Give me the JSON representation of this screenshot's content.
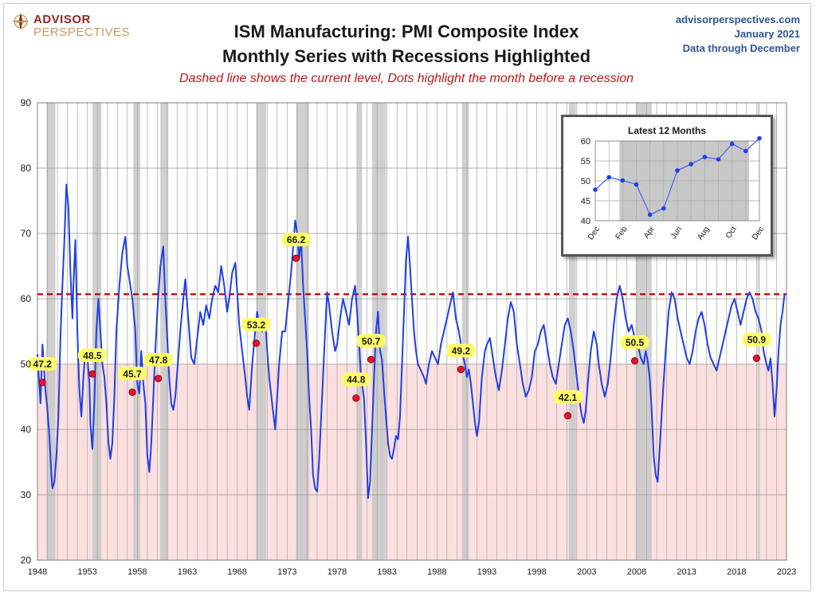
{
  "header": {
    "logo_line1": "ADVISOR",
    "logo_line2": "PERSPECTIVES",
    "title_line1": "ISM Manufacturing: PMI Composite Index",
    "title_line2": "Monthly Series with Recessions Highlighted",
    "subtitle": "Dashed line shows the current level, Dots highlight the month before a recession",
    "source_site": "advisorperspectives.com",
    "source_date": "January 2021",
    "source_note": "Data through December"
  },
  "colors": {
    "series": "#1f3fe8",
    "dashed_line": "#c00000",
    "recession_band": "#c8c8c8",
    "below_50_band": "#fbe0df",
    "dot": "#e8112d",
    "label_bg": "#ffff66",
    "logo_red": "#8c2a1e",
    "logo_gold": "#c89b5a",
    "source_blue": "#2f5597"
  },
  "chart_data": [
    {
      "type": "line",
      "xlim": [
        1948,
        2023
      ],
      "ylim": [
        20,
        90
      ],
      "x_ticks": [
        1948,
        1953,
        1958,
        1963,
        1968,
        1973,
        1978,
        1983,
        1988,
        1993,
        1998,
        2003,
        2008,
        2013,
        2018,
        2023
      ],
      "y_ticks": [
        20,
        30,
        40,
        50,
        60,
        70,
        80,
        90
      ],
      "grid": true,
      "vertical_grid_step_years": 1,
      "current_level": 60.7,
      "shaded_below": 50,
      "recessions": [
        [
          1948.9,
          1949.8
        ],
        [
          1953.5,
          1954.4
        ],
        [
          1957.6,
          1958.3
        ],
        [
          1960.3,
          1961.1
        ],
        [
          1969.9,
          1970.9
        ],
        [
          1973.9,
          1975.2
        ],
        [
          1980.0,
          1980.5
        ],
        [
          1981.5,
          1982.9
        ],
        [
          1990.5,
          1991.2
        ],
        [
          2001.2,
          2001.9
        ],
        [
          2007.9,
          2009.5
        ],
        [
          2020.1,
          2020.3
        ]
      ],
      "series_points": [
        [
          1948.0,
          51.5
        ],
        [
          1948.3,
          44
        ],
        [
          1948.5,
          53
        ],
        [
          1948.8,
          46
        ],
        [
          1949.0,
          43
        ],
        [
          1949.2,
          39
        ],
        [
          1949.4,
          33
        ],
        [
          1949.5,
          31
        ],
        [
          1949.7,
          32
        ],
        [
          1949.9,
          36
        ],
        [
          1950.1,
          42
        ],
        [
          1950.3,
          54
        ],
        [
          1950.5,
          62
        ],
        [
          1950.7,
          69
        ],
        [
          1950.9,
          77.5
        ],
        [
          1951.1,
          74
        ],
        [
          1951.3,
          64
        ],
        [
          1951.5,
          57
        ],
        [
          1951.6,
          62
        ],
        [
          1951.8,
          69
        ],
        [
          1952.0,
          55
        ],
        [
          1952.2,
          46
        ],
        [
          1952.4,
          42
        ],
        [
          1952.6,
          48
        ],
        [
          1952.8,
          52
        ],
        [
          1953.0,
          51
        ],
        [
          1953.2,
          47
        ],
        [
          1953.3,
          41
        ],
        [
          1953.5,
          37
        ],
        [
          1953.7,
          44
        ],
        [
          1953.9,
          55
        ],
        [
          1954.1,
          60
        ],
        [
          1954.3,
          55
        ],
        [
          1954.5,
          50
        ],
        [
          1954.7,
          48
        ],
        [
          1954.9,
          44
        ],
        [
          1955.1,
          38
        ],
        [
          1955.3,
          35.5
        ],
        [
          1955.5,
          38
        ],
        [
          1955.7,
          45
        ],
        [
          1955.9,
          55
        ],
        [
          1956.2,
          62
        ],
        [
          1956.5,
          67
        ],
        [
          1956.8,
          69.5
        ],
        [
          1957.0,
          65
        ],
        [
          1957.2,
          63
        ],
        [
          1957.5,
          60
        ],
        [
          1957.8,
          55
        ],
        [
          1958.0,
          47
        ],
        [
          1958.2,
          45.5
        ],
        [
          1958.4,
          52
        ],
        [
          1958.6,
          47
        ],
        [
          1958.8,
          44
        ],
        [
          1959.0,
          36
        ],
        [
          1959.2,
          33.5
        ],
        [
          1959.4,
          38
        ],
        [
          1959.6,
          45
        ],
        [
          1959.8,
          52
        ],
        [
          1960.0,
          58
        ],
        [
          1960.3,
          65
        ],
        [
          1960.6,
          68
        ],
        [
          1960.8,
          60
        ],
        [
          1961.0,
          54
        ],
        [
          1961.2,
          47.8
        ],
        [
          1961.4,
          44
        ],
        [
          1961.6,
          43
        ],
        [
          1961.8,
          45
        ],
        [
          1962.0,
          49
        ],
        [
          1962.3,
          55
        ],
        [
          1962.6,
          60
        ],
        [
          1962.8,
          63
        ],
        [
          1963.0,
          59
        ],
        [
          1963.2,
          55
        ],
        [
          1963.4,
          51
        ],
        [
          1963.7,
          50
        ],
        [
          1964.0,
          54
        ],
        [
          1964.3,
          58
        ],
        [
          1964.6,
          56
        ],
        [
          1964.9,
          59
        ],
        [
          1965.2,
          57
        ],
        [
          1965.5,
          60
        ],
        [
          1965.8,
          62
        ],
        [
          1966.1,
          61
        ],
        [
          1966.4,
          65
        ],
        [
          1966.7,
          62
        ],
        [
          1967.0,
          58
        ],
        [
          1967.2,
          60
        ],
        [
          1967.5,
          64
        ],
        [
          1967.8,
          65.5
        ],
        [
          1968.0,
          61
        ],
        [
          1968.2,
          56
        ],
        [
          1968.5,
          52
        ],
        [
          1968.8,
          48
        ],
        [
          1969.0,
          45
        ],
        [
          1969.2,
          43
        ],
        [
          1969.5,
          50
        ],
        [
          1969.8,
          55
        ],
        [
          1970.0,
          58
        ],
        [
          1970.2,
          56
        ],
        [
          1970.5,
          55
        ],
        [
          1970.8,
          57
        ],
        [
          1971.0,
          52
        ],
        [
          1971.2,
          48
        ],
        [
          1971.5,
          44
        ],
        [
          1971.8,
          40
        ],
        [
          1972.0,
          45
        ],
        [
          1972.2,
          50
        ],
        [
          1972.5,
          55
        ],
        [
          1972.8,
          55
        ],
        [
          1973.0,
          58
        ],
        [
          1973.2,
          61
        ],
        [
          1973.4,
          64
        ],
        [
          1973.6,
          68
        ],
        [
          1973.8,
          72
        ],
        [
          1974.0,
          70
        ],
        [
          1974.2,
          66.2
        ],
        [
          1974.4,
          69
        ],
        [
          1974.6,
          62
        ],
        [
          1974.8,
          57
        ],
        [
          1975.0,
          52
        ],
        [
          1975.2,
          45
        ],
        [
          1975.4,
          40
        ],
        [
          1975.6,
          33
        ],
        [
          1975.8,
          31
        ],
        [
          1976.0,
          30.5
        ],
        [
          1976.2,
          35
        ],
        [
          1976.5,
          45
        ],
        [
          1976.8,
          55
        ],
        [
          1977.0,
          61
        ],
        [
          1977.2,
          59
        ],
        [
          1977.5,
          55
        ],
        [
          1977.8,
          52
        ],
        [
          1978.0,
          53
        ],
        [
          1978.3,
          57
        ],
        [
          1978.6,
          60
        ],
        [
          1978.9,
          58
        ],
        [
          1979.2,
          56
        ],
        [
          1979.5,
          60
        ],
        [
          1979.8,
          62
        ],
        [
          1980.0,
          58
        ],
        [
          1980.2,
          53
        ],
        [
          1980.4,
          48
        ],
        [
          1980.7,
          44.8
        ],
        [
          1980.9,
          38
        ],
        [
          1981.1,
          29.5
        ],
        [
          1981.3,
          32
        ],
        [
          1981.5,
          40
        ],
        [
          1981.7,
          48
        ],
        [
          1981.9,
          55
        ],
        [
          1982.1,
          58
        ],
        [
          1982.3,
          52
        ],
        [
          1982.5,
          50.7
        ],
        [
          1982.7,
          46
        ],
        [
          1982.9,
          42
        ],
        [
          1983.1,
          38
        ],
        [
          1983.3,
          36
        ],
        [
          1983.5,
          35.5
        ],
        [
          1983.7,
          37
        ],
        [
          1983.9,
          39
        ],
        [
          1984.1,
          38.5
        ],
        [
          1984.3,
          42
        ],
        [
          1984.5,
          50
        ],
        [
          1984.7,
          58
        ],
        [
          1984.9,
          66
        ],
        [
          1985.1,
          69.5
        ],
        [
          1985.3,
          65
        ],
        [
          1985.5,
          60
        ],
        [
          1985.7,
          55
        ],
        [
          1985.9,
          52
        ],
        [
          1986.1,
          50
        ],
        [
          1986.4,
          49
        ],
        [
          1986.7,
          48
        ],
        [
          1986.9,
          47
        ],
        [
          1987.2,
          50
        ],
        [
          1987.5,
          52
        ],
        [
          1987.8,
          51
        ],
        [
          1988.1,
          50
        ],
        [
          1988.4,
          53
        ],
        [
          1988.7,
          55
        ],
        [
          1989.0,
          57
        ],
        [
          1989.3,
          59
        ],
        [
          1989.6,
          61
        ],
        [
          1989.9,
          57
        ],
        [
          1990.2,
          55
        ],
        [
          1990.5,
          52
        ],
        [
          1990.8,
          50
        ],
        [
          1991.0,
          48
        ],
        [
          1991.2,
          49.2
        ],
        [
          1991.4,
          47
        ],
        [
          1991.6,
          44
        ],
        [
          1991.8,
          41
        ],
        [
          1992.0,
          39
        ],
        [
          1992.2,
          41
        ],
        [
          1992.5,
          48
        ],
        [
          1992.8,
          52
        ],
        [
          1993.0,
          53
        ],
        [
          1993.3,
          54
        ],
        [
          1993.6,
          51
        ],
        [
          1993.9,
          48
        ],
        [
          1994.2,
          46
        ],
        [
          1994.5,
          49
        ],
        [
          1994.8,
          53
        ],
        [
          1995.1,
          57
        ],
        [
          1995.4,
          59.5
        ],
        [
          1995.7,
          58
        ],
        [
          1996.0,
          53
        ],
        [
          1996.3,
          50
        ],
        [
          1996.6,
          47
        ],
        [
          1996.9,
          45
        ],
        [
          1997.2,
          46
        ],
        [
          1997.5,
          48
        ],
        [
          1997.8,
          52
        ],
        [
          1998.1,
          53
        ],
        [
          1998.4,
          55
        ],
        [
          1998.7,
          56
        ],
        [
          1999.0,
          53
        ],
        [
          1999.3,
          50
        ],
        [
          1999.6,
          48
        ],
        [
          1999.9,
          47
        ],
        [
          2000.2,
          50
        ],
        [
          2000.5,
          53
        ],
        [
          2000.8,
          56
        ],
        [
          2001.1,
          57
        ],
        [
          2001.4,
          55
        ],
        [
          2001.7,
          52
        ],
        [
          2002.0,
          48
        ],
        [
          2002.3,
          44
        ],
        [
          2002.5,
          42.1
        ],
        [
          2002.7,
          41
        ],
        [
          2002.9,
          43
        ],
        [
          2003.1,
          47
        ],
        [
          2003.4,
          52
        ],
        [
          2003.7,
          55
        ],
        [
          2004.0,
          53
        ],
        [
          2004.2,
          50
        ],
        [
          2004.5,
          47
        ],
        [
          2004.8,
          45
        ],
        [
          2005.1,
          47
        ],
        [
          2005.4,
          51
        ],
        [
          2005.7,
          56
        ],
        [
          2006.0,
          60
        ],
        [
          2006.3,
          62
        ],
        [
          2006.6,
          60
        ],
        [
          2006.9,
          57
        ],
        [
          2007.2,
          55
        ],
        [
          2007.5,
          56
        ],
        [
          2007.8,
          54
        ],
        [
          2008.1,
          53
        ],
        [
          2008.4,
          51
        ],
        [
          2008.7,
          50
        ],
        [
          2008.9,
          52
        ],
        [
          2009.1,
          50.5
        ],
        [
          2009.3,
          48
        ],
        [
          2009.5,
          43
        ],
        [
          2009.7,
          36
        ],
        [
          2009.9,
          33
        ],
        [
          2010.1,
          32
        ],
        [
          2010.3,
          37
        ],
        [
          2010.6,
          45
        ],
        [
          2010.9,
          52
        ],
        [
          2011.2,
          58
        ],
        [
          2011.5,
          61
        ],
        [
          2011.8,
          60
        ],
        [
          2012.1,
          57
        ],
        [
          2012.4,
          55
        ],
        [
          2012.7,
          53
        ],
        [
          2013.0,
          51
        ],
        [
          2013.3,
          50
        ],
        [
          2013.6,
          52
        ],
        [
          2013.9,
          55
        ],
        [
          2014.2,
          57
        ],
        [
          2014.5,
          58
        ],
        [
          2014.8,
          56
        ],
        [
          2015.1,
          53
        ],
        [
          2015.4,
          51
        ],
        [
          2015.7,
          50
        ],
        [
          2016.0,
          49
        ],
        [
          2016.3,
          51
        ],
        [
          2016.6,
          53
        ],
        [
          2016.9,
          55
        ],
        [
          2017.2,
          57
        ],
        [
          2017.5,
          59
        ],
        [
          2017.8,
          60
        ],
        [
          2018.1,
          58
        ],
        [
          2018.4,
          56
        ],
        [
          2018.7,
          58
        ],
        [
          2019.0,
          60
        ],
        [
          2019.3,
          61
        ],
        [
          2019.6,
          60
        ],
        [
          2019.9,
          58
        ],
        [
          2020.2,
          57
        ],
        [
          2020.5,
          55
        ],
        [
          2020.7,
          52
        ],
        [
          2021.0,
          50
        ],
        [
          2021.2,
          49
        ],
        [
          2021.4,
          50.9
        ],
        [
          2021.6,
          47
        ],
        [
          2021.8,
          42
        ],
        [
          2022.0,
          46
        ],
        [
          2022.2,
          52
        ],
        [
          2022.4,
          56
        ],
        [
          2022.6,
          58
        ],
        [
          2022.8,
          60.7
        ]
      ],
      "highlights": [
        {
          "x": 1948.5,
          "y": 47.2,
          "label": "47.2"
        },
        {
          "x": 1953.5,
          "y": 48.5,
          "label": "48.5"
        },
        {
          "x": 1957.5,
          "y": 45.7,
          "label": "45.7"
        },
        {
          "x": 1960.1,
          "y": 47.8,
          "label": "47.8"
        },
        {
          "x": 1969.9,
          "y": 53.2,
          "label": "53.2"
        },
        {
          "x": 1973.9,
          "y": 66.2,
          "label": "66.2"
        },
        {
          "x": 1979.9,
          "y": 44.8,
          "label": "44.8"
        },
        {
          "x": 1981.4,
          "y": 50.7,
          "label": "50.7"
        },
        {
          "x": 1990.4,
          "y": 49.2,
          "label": "49.2"
        },
        {
          "x": 2001.1,
          "y": 42.1,
          "label": "42.1"
        },
        {
          "x": 2007.8,
          "y": 50.5,
          "label": "50.5"
        },
        {
          "x": 2020.0,
          "y": 50.9,
          "label": "50.9"
        }
      ]
    },
    {
      "type": "line",
      "title": "Latest 12 Months",
      "categories": [
        "Dec",
        "Jan",
        "Feb",
        "Mar",
        "Apr",
        "May",
        "Jun",
        "Jul",
        "Aug",
        "Sep",
        "Oct",
        "Nov",
        "Dec"
      ],
      "x_tick_labels": [
        "Dec",
        "Feb",
        "Apr",
        "Jun",
        "Aug",
        "Oct",
        "Dec"
      ],
      "values": [
        47.8,
        50.9,
        50.1,
        49.1,
        41.5,
        43.1,
        52.6,
        54.2,
        56.0,
        55.4,
        59.3,
        57.5,
        60.7
      ],
      "ylim": [
        40,
        60
      ],
      "y_ticks": [
        40,
        45,
        50,
        55,
        60
      ],
      "grid": true,
      "recession_span": [
        "Feb",
        "Nov"
      ]
    }
  ]
}
